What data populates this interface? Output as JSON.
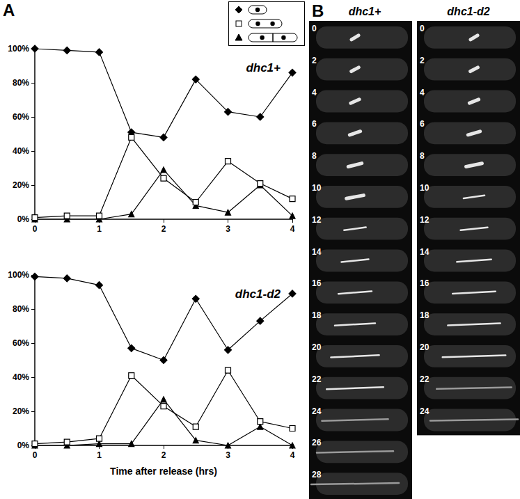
{
  "panel_labels": [
    "A",
    "B"
  ],
  "chart_data": [
    {
      "type": "line",
      "title": "dhc1+",
      "x": [
        0,
        0.5,
        1,
        1.5,
        2,
        2.5,
        3,
        3.5,
        4
      ],
      "series": [
        {
          "color": "#000000",
          "marker": "diamond",
          "values": [
            100,
            99,
            98,
            51,
            48,
            82,
            63,
            60,
            86
          ]
        },
        {
          "color": "#000000",
          "marker": "open_square",
          "values": [
            1,
            2,
            2,
            48,
            24,
            10,
            34,
            21,
            12
          ]
        },
        {
          "color": "#000000",
          "marker": "triangle",
          "values": [
            0,
            0,
            0,
            3,
            29,
            8,
            4,
            20,
            2
          ]
        }
      ],
      "xlim": [
        0,
        4
      ],
      "xticks": [
        0,
        1,
        2,
        3,
        4
      ],
      "ylim": [
        0,
        100
      ],
      "yticks": [
        {
          "value": 0,
          "label": "0%"
        },
        {
          "value": 20,
          "label": "20%"
        },
        {
          "value": 40,
          "label": "40%"
        },
        {
          "value": 60,
          "label": "60%"
        },
        {
          "value": 80,
          "label": "80%"
        },
        {
          "value": 100,
          "label": "100%"
        }
      ],
      "grid": false
    },
    {
      "type": "line",
      "title": "dhc1-d2",
      "x": [
        0,
        0.5,
        1,
        1.5,
        2,
        2.5,
        3,
        3.5,
        4
      ],
      "series": [
        {
          "color": "#000000",
          "marker": "diamond",
          "values": [
            99,
            98,
            94,
            57,
            50,
            86,
            56,
            73,
            89
          ]
        },
        {
          "color": "#000000",
          "marker": "open_square",
          "values": [
            1,
            2,
            4,
            41,
            23,
            11,
            44,
            14,
            10
          ]
        },
        {
          "color": "#000000",
          "marker": "triangle",
          "values": [
            0,
            0,
            1,
            1,
            27,
            3,
            0,
            11,
            0
          ]
        }
      ],
      "xlabel": "Time after release (hrs)",
      "xlim": [
        0,
        4
      ],
      "xticks": [
        0,
        1,
        2,
        3,
        4
      ],
      "ylim": [
        0,
        100
      ],
      "yticks": [
        {
          "value": 0,
          "label": "0%"
        },
        {
          "value": 20,
          "label": "20%"
        },
        {
          "value": 40,
          "label": "40%"
        },
        {
          "value": 60,
          "label": "60%"
        },
        {
          "value": 80,
          "label": "80%"
        },
        {
          "value": 100,
          "label": "100%"
        }
      ],
      "grid": false
    }
  ],
  "micrographs": {
    "columns": [
      {
        "label": "dhc1+",
        "times": [
          0,
          2,
          4,
          6,
          8,
          10,
          12,
          14,
          16,
          18,
          20,
          22,
          24,
          26,
          28
        ]
      },
      {
        "label": "dhc1-d2",
        "times": [
          0,
          2,
          4,
          6,
          8,
          10,
          12,
          14,
          16,
          18,
          20,
          22,
          24
        ]
      }
    ]
  }
}
